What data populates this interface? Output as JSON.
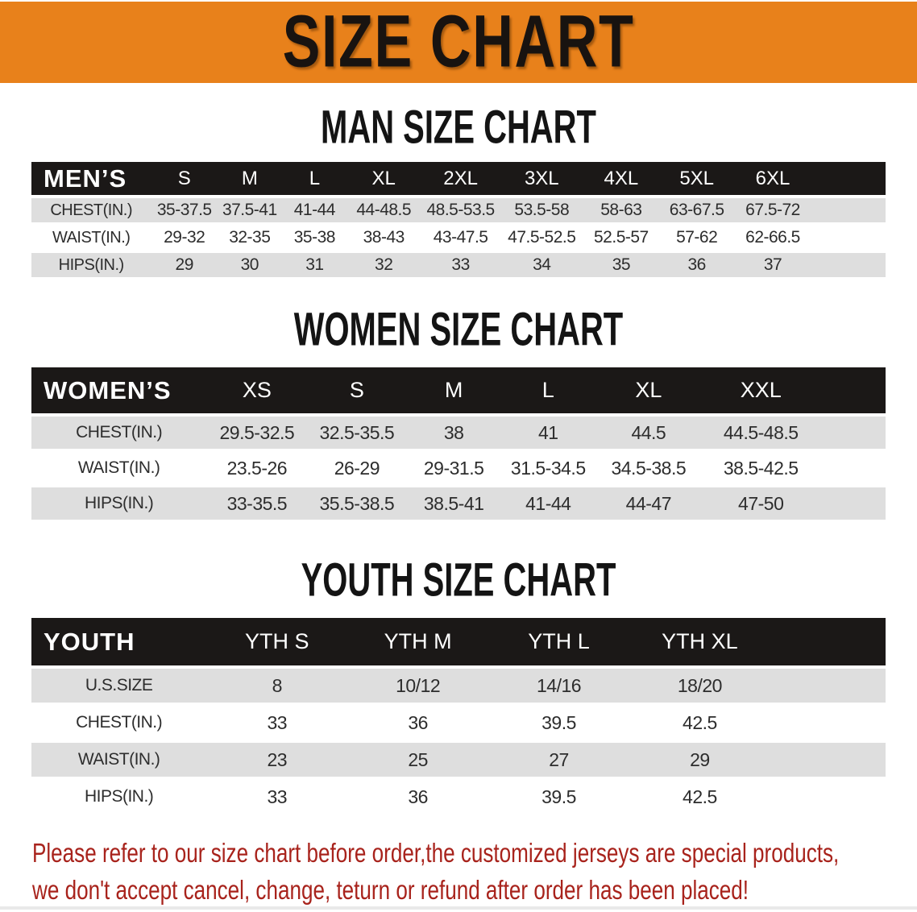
{
  "banner": {
    "title": "SIZE CHART",
    "bg_color": "#e8811b"
  },
  "headings": {
    "men": "MAN SIZE CHART",
    "women": "WOMEN SIZE CHART",
    "youth": "YOUTH SIZE CHART"
  },
  "tables": {
    "men": {
      "label": "MEN’S",
      "columns": [
        "S",
        "M",
        "L",
        "XL",
        "2XL",
        "3XL",
        "4XL",
        "5XL",
        "6XL"
      ],
      "rows": [
        {
          "label": "CHEST(IN.)",
          "values": [
            "35-37.5",
            "37.5-41",
            "41-44",
            "44-48.5",
            "48.5-53.5",
            "53.5-58",
            "58-63",
            "63-67.5",
            "67.5-72"
          ]
        },
        {
          "label": "WAIST(IN.)",
          "values": [
            "29-32",
            "32-35",
            "35-38",
            "38-43",
            "43-47.5",
            "47.5-52.5",
            "52.5-57",
            "57-62",
            "62-66.5"
          ]
        },
        {
          "label": "HIPS(IN.)",
          "values": [
            "29",
            "30",
            "31",
            "32",
            "33",
            "34",
            "35",
            "36",
            "37"
          ]
        }
      ]
    },
    "women": {
      "label": "WOMEN’S",
      "columns": [
        "XS",
        "S",
        "M",
        "L",
        "XL",
        "XXL"
      ],
      "rows": [
        {
          "label": "CHEST(IN.)",
          "values": [
            "29.5-32.5",
            "32.5-35.5",
            "38",
            "41",
            "44.5",
            "44.5-48.5"
          ]
        },
        {
          "label": "WAIST(IN.)",
          "values": [
            "23.5-26",
            "26-29",
            "29-31.5",
            "31.5-34.5",
            "34.5-38.5",
            "38.5-42.5"
          ]
        },
        {
          "label": "HIPS(IN.)",
          "values": [
            "33-35.5",
            "35.5-38.5",
            "38.5-41",
            "41-44",
            "44-47",
            "47-50"
          ]
        }
      ]
    },
    "youth": {
      "label": "YOUTH",
      "columns": [
        "YTH S",
        "YTH M",
        "YTH L",
        "YTH XL"
      ],
      "rows": [
        {
          "label": "U.S.SIZE",
          "values": [
            "8",
            "10/12",
            "14/16",
            "18/20"
          ]
        },
        {
          "label": "CHEST(IN.)",
          "values": [
            "33",
            "36",
            "39.5",
            "42.5"
          ]
        },
        {
          "label": "WAIST(IN.)",
          "values": [
            "23",
            "25",
            "27",
            "29"
          ]
        },
        {
          "label": "HIPS(IN.)",
          "values": [
            "33",
            "36",
            "39.5",
            "42.5"
          ]
        }
      ]
    }
  },
  "footnote": {
    "line1": "Please refer to our size chart before order,the customized jerseys are special products,",
    "line2": "we don't accept cancel, change, teturn or refund after order has been placed!",
    "color": "#a8231c"
  }
}
